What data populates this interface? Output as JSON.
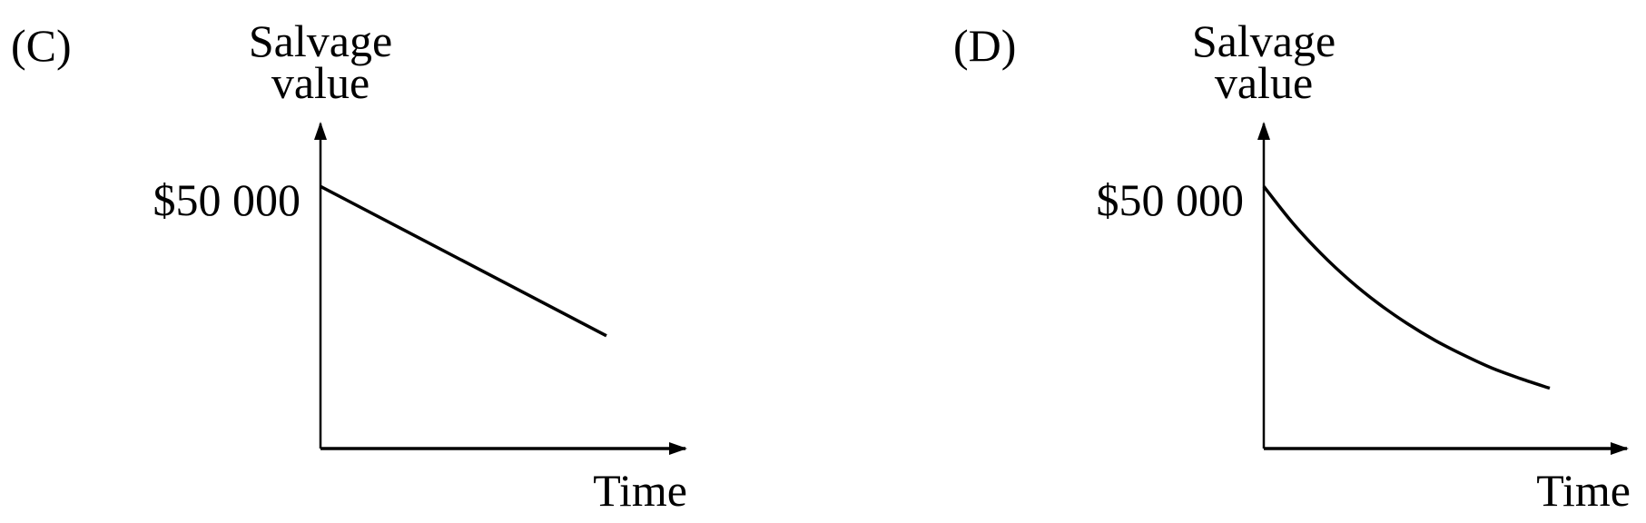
{
  "chart_data": [
    {
      "type": "line",
      "panel_label": "(C)",
      "ylabel_line1": "Salvage",
      "ylabel_line2": "value",
      "xlabel": "Time",
      "y_tick_label": "$50 000",
      "y_tick_value": 50000,
      "ylim": [
        0,
        62000
      ],
      "xlim": [
        0,
        1.27
      ],
      "grid": false,
      "series": [
        {
          "x": [
            0,
            1
          ],
          "y": [
            50000,
            21500
          ]
        }
      ]
    },
    {
      "type": "line",
      "panel_label": "(D)",
      "ylabel_line1": "Salvage",
      "ylabel_line2": "value",
      "xlabel": "Time",
      "y_tick_label": "$50 000",
      "y_tick_value": 50000,
      "ylim": [
        0,
        62000
      ],
      "xlim": [
        0,
        1.27
      ],
      "grid": false,
      "series": [
        {
          "x": [
            0,
            0.1,
            0.2,
            0.3,
            0.4,
            0.5,
            0.6,
            0.7,
            0.8,
            0.9,
            1.0
          ],
          "y": [
            50000,
            43100,
            37200,
            32100,
            27700,
            23900,
            20600,
            17800,
            15300,
            13300,
            11500
          ]
        }
      ]
    }
  ]
}
